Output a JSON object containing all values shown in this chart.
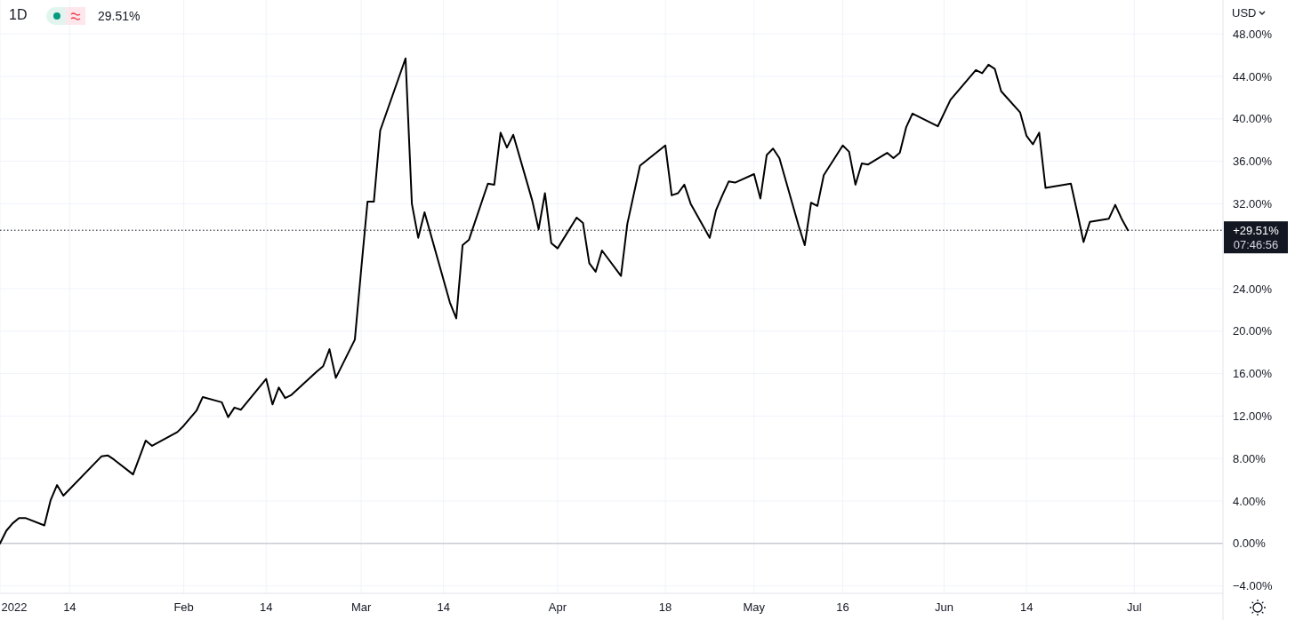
{
  "chart_data": {
    "type": "line",
    "x": [
      "2022-01-03",
      "2022-01-04",
      "2022-01-05",
      "2022-01-06",
      "2022-01-07",
      "2022-01-10",
      "2022-01-11",
      "2022-01-12",
      "2022-01-13",
      "2022-01-19",
      "2022-01-20",
      "2022-01-21",
      "2022-01-24",
      "2022-01-26",
      "2022-01-27",
      "2022-01-31",
      "2022-02-01",
      "2022-02-03",
      "2022-02-04",
      "2022-02-07",
      "2022-02-08",
      "2022-02-09",
      "2022-02-10",
      "2022-02-14",
      "2022-02-15",
      "2022-02-16",
      "2022-02-17",
      "2022-02-18",
      "2022-02-22",
      "2022-02-23",
      "2022-02-24",
      "2022-02-25",
      "2022-02-28",
      "2022-03-01",
      "2022-03-02",
      "2022-03-03",
      "2022-03-04",
      "2022-03-08",
      "2022-03-09",
      "2022-03-10",
      "2022-03-11",
      "2022-03-15",
      "2022-03-16",
      "2022-03-17",
      "2022-03-18",
      "2022-03-21",
      "2022-03-22",
      "2022-03-23",
      "2022-03-24",
      "2022-03-25",
      "2022-03-28",
      "2022-03-29",
      "2022-03-30",
      "2022-03-31",
      "2022-04-01",
      "2022-04-04",
      "2022-04-05",
      "2022-04-06",
      "2022-04-07",
      "2022-04-08",
      "2022-04-11",
      "2022-04-12",
      "2022-04-14",
      "2022-04-18",
      "2022-04-19",
      "2022-04-20",
      "2022-04-21",
      "2022-04-22",
      "2022-04-25",
      "2022-04-26",
      "2022-04-27",
      "2022-04-28",
      "2022-04-29",
      "2022-05-02",
      "2022-05-03",
      "2022-05-04",
      "2022-05-05",
      "2022-05-06",
      "2022-05-09",
      "2022-05-10",
      "2022-05-11",
      "2022-05-12",
      "2022-05-13",
      "2022-05-16",
      "2022-05-17",
      "2022-05-18",
      "2022-05-19",
      "2022-05-20",
      "2022-05-23",
      "2022-05-24",
      "2022-05-25",
      "2022-05-26",
      "2022-05-27",
      "2022-05-31",
      "2022-06-02",
      "2022-06-06",
      "2022-06-07",
      "2022-06-08",
      "2022-06-09",
      "2022-06-10",
      "2022-06-13",
      "2022-06-14",
      "2022-06-15",
      "2022-06-16",
      "2022-06-17",
      "2022-06-21",
      "2022-06-22",
      "2022-06-23",
      "2022-06-24",
      "2022-06-27",
      "2022-06-28",
      "2022-06-29",
      "2022-06-30"
    ],
    "series": [
      {
        "color": "#000000",
        "values": [
          0,
          1.2,
          1.9,
          2.4,
          2.4,
          1.7,
          4.1,
          5.5,
          4.5,
          8.2,
          8.3,
          7.9,
          6.5,
          9.7,
          9.2,
          10.5,
          11.1,
          12.5,
          13.8,
          13.3,
          11.9,
          12.8,
          12.6,
          15.5,
          13.1,
          14.7,
          13.7,
          14.0,
          16.2,
          16.7,
          18.3,
          15.6,
          19.2,
          25.8,
          32.2,
          32.2,
          38.9,
          45.7,
          32.0,
          28.8,
          31.2,
          22.7,
          21.2,
          28.1,
          28.6,
          33.9,
          33.8,
          38.7,
          37.3,
          38.5,
          32.3,
          29.6,
          33.0,
          28.3,
          27.8,
          30.7,
          30.2,
          26.4,
          25.6,
          27.6,
          25.2,
          30.1,
          35.6,
          37.5,
          32.8,
          33.0,
          33.8,
          32.0,
          28.8,
          31.4,
          32.8,
          34.1,
          34.0,
          34.8,
          32.5,
          36.6,
          37.2,
          36.3,
          30.0,
          28.1,
          32.1,
          31.8,
          34.7,
          37.5,
          36.9,
          33.8,
          35.8,
          35.7,
          36.8,
          36.3,
          36.8,
          39.2,
          40.5,
          39.3,
          41.8,
          44.6,
          44.3,
          45.1,
          44.7,
          42.6,
          40.6,
          38.4,
          37.6,
          38.7,
          33.5,
          33.9,
          31.2,
          28.4,
          30.3,
          30.6,
          31.9,
          30.6,
          29.51
        ]
      }
    ],
    "xlim": [
      "2022-01-03",
      "2022-07-15"
    ],
    "xticks": [
      {
        "value": "2022-01-03",
        "label": "2022"
      },
      {
        "value": "2022-01-14",
        "label": "14"
      },
      {
        "value": "2022-02-01",
        "label": "Feb"
      },
      {
        "value": "2022-02-14",
        "label": "14"
      },
      {
        "value": "2022-03-01",
        "label": "Mar"
      },
      {
        "value": "2022-03-14",
        "label": "14"
      },
      {
        "value": "2022-04-01",
        "label": "Apr"
      },
      {
        "value": "2022-04-18",
        "label": "18"
      },
      {
        "value": "2022-05-02",
        "label": "May"
      },
      {
        "value": "2022-05-16",
        "label": "16"
      },
      {
        "value": "2022-06-01",
        "label": "Jun"
      },
      {
        "value": "2022-06-14",
        "label": "14"
      },
      {
        "value": "2022-07-01",
        "label": "Jul"
      }
    ],
    "ylim": [
      -4.7,
      51.2
    ],
    "yticks": [
      {
        "value": -4,
        "label": "−4.00%"
      },
      {
        "value": 0,
        "label": "0.00%"
      },
      {
        "value": 4,
        "label": "4.00%"
      },
      {
        "value": 8,
        "label": "8.00%"
      },
      {
        "value": 12,
        "label": "12.00%"
      },
      {
        "value": 16,
        "label": "16.00%"
      },
      {
        "value": 20,
        "label": "20.00%"
      },
      {
        "value": 24,
        "label": "24.00%"
      },
      {
        "value": 32,
        "label": "32.00%"
      },
      {
        "value": 36,
        "label": "36.00%"
      },
      {
        "value": 40,
        "label": "40.00%"
      },
      {
        "value": 44,
        "label": "44.00%"
      },
      {
        "value": 48,
        "label": "48.00%"
      }
    ],
    "ref_lines": [
      {
        "axis": "y",
        "value": 0,
        "color": "#b2b5be",
        "line_style": "solid"
      },
      {
        "axis": "y",
        "value": 29.51,
        "label": "+29.51%",
        "color": "#131722",
        "line_style": "dotted"
      }
    ],
    "annotations": [
      "1D",
      "29.51%",
      "07:46:56",
      "USD"
    ],
    "grid": true,
    "line_style": "solid",
    "marker": "none"
  }
}
